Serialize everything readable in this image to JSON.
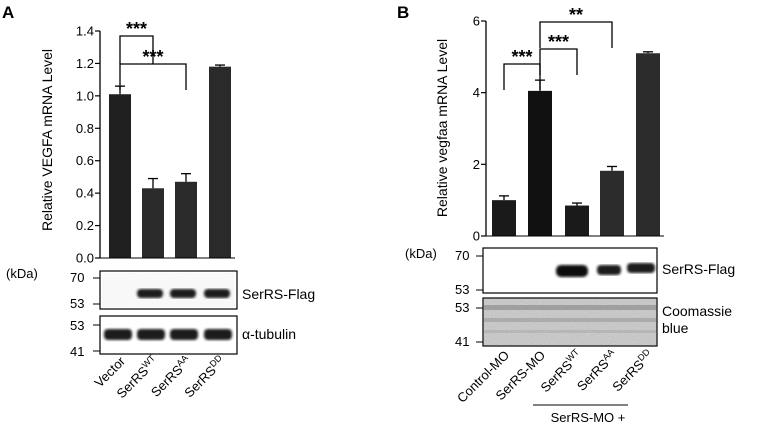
{
  "panels": {
    "a": {
      "letter": "A"
    },
    "b": {
      "letter": "B"
    }
  },
  "chart_data": [
    {
      "type": "bar",
      "panel": "A",
      "ylabel": "Relative VEGFA mRNA Level",
      "ylim": [
        0,
        1.4
      ],
      "yticks": [
        "0.0",
        "0.2",
        "0.4",
        "0.6",
        "0.8",
        "1.0",
        "1.2",
        "1.4"
      ],
      "categories": [
        {
          "base": "Vector",
          "sup": ""
        },
        {
          "base": "SerRS",
          "sup": "WT"
        },
        {
          "base": "SerRS",
          "sup": "AA"
        },
        {
          "base": "SerRS",
          "sup": "DD"
        }
      ],
      "values": [
        1.01,
        0.43,
        0.47,
        1.18
      ],
      "errors": [
        0.05,
        0.06,
        0.05,
        0.01
      ],
      "colors": [
        "#202020",
        "#2a2a2a",
        "#2a2a2a",
        "#2a2a2a"
      ],
      "significance": [
        {
          "from": 0,
          "to": 1,
          "label": "***"
        },
        {
          "from": 0,
          "to": 2,
          "label": "***"
        }
      ],
      "kda_label": "(kDa)",
      "blots": [
        {
          "name": "SerRS-Flag",
          "markers": [
            "70",
            "53"
          ]
        },
        {
          "name": "α-tubulin",
          "markers": [
            "53",
            "41"
          ]
        }
      ]
    },
    {
      "type": "bar",
      "panel": "B",
      "ylabel": "Relative vegfaa mRNA Level",
      "ylim": [
        0,
        6
      ],
      "yticks": [
        "0",
        "2",
        "4",
        "6"
      ],
      "categories": [
        {
          "base": "Control-MO",
          "sup": ""
        },
        {
          "base": "SerRS-MO",
          "sup": ""
        },
        {
          "base": "SerRS",
          "sup": "WT"
        },
        {
          "base": "SerRS",
          "sup": "AA"
        },
        {
          "base": "SerRS",
          "sup": "DD"
        }
      ],
      "values": [
        1.0,
        4.05,
        0.85,
        1.82,
        5.1
      ],
      "errors": [
        0.12,
        0.3,
        0.07,
        0.12,
        0.04
      ],
      "colors": [
        "#1a1a1a",
        "#111111",
        "#1a1a1a",
        "#2c2c2c",
        "#2c2c2c"
      ],
      "significance": [
        {
          "from": 0,
          "to": 1,
          "label": "***"
        },
        {
          "from": 1,
          "to": 2,
          "label": "***"
        },
        {
          "from": 1,
          "to": 3,
          "label": "**"
        }
      ],
      "group_label": "SerRS-MO +",
      "kda_label": "(kDa)",
      "blots": [
        {
          "name": "SerRS-Flag",
          "markers": [
            "70",
            "53"
          ]
        },
        {
          "name": "Coomassie",
          "name2": "blue",
          "markers": [
            "53",
            "41"
          ]
        }
      ]
    }
  ]
}
